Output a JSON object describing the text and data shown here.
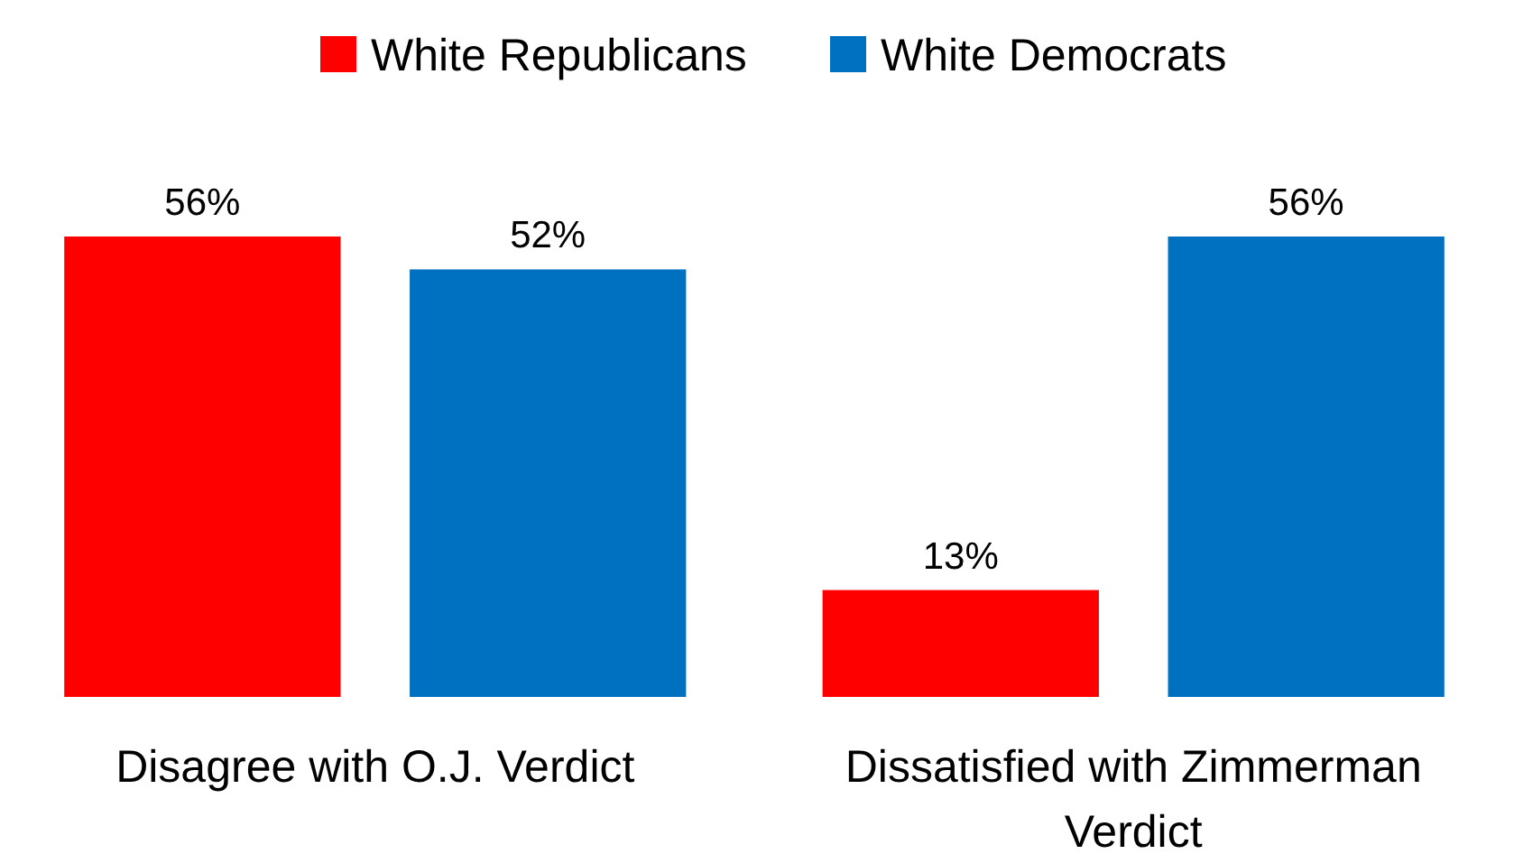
{
  "chart_data": {
    "type": "bar",
    "categories": [
      "Disagree with O.J. Verdict",
      "Dissatisfied with Zimmerman Verdict"
    ],
    "series": [
      {
        "name": "White Republicans",
        "color": "#ff0000",
        "values": [
          56,
          13
        ],
        "value_labels": [
          "56%",
          "13%"
        ]
      },
      {
        "name": "White Democrats",
        "color": "#0070c0",
        "values": [
          52,
          56
        ],
        "value_labels": [
          "52%",
          "56%"
        ]
      }
    ],
    "relative": false,
    "legend": "top"
  }
}
